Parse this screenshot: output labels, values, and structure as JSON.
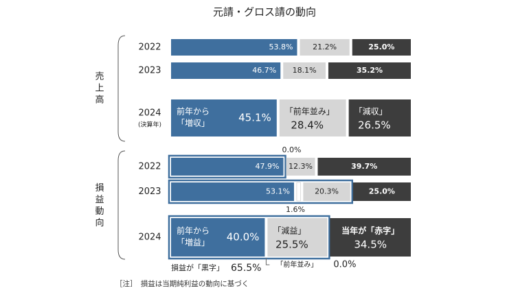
{
  "chart_data": {
    "type": "bar",
    "stacked": "horizontal-100%",
    "title": "元請・グロス請の動向",
    "colors": {
      "increase": "#3f6f9e",
      "flat": "#d6d6d6",
      "decrease": "#3d3d3d",
      "highlight_border": "#3f6f9e"
    },
    "groups": [
      {
        "label": "売上高",
        "rows": [
          {
            "category": "2022",
            "values": [
              53.8,
              21.2,
              25.0
            ],
            "labels": [
              "53.8%",
              "21.2%",
              "25.0%"
            ]
          },
          {
            "category": "2023",
            "values": [
              46.7,
              18.1,
              35.2
            ],
            "labels": [
              "46.7%",
              "18.1%",
              "35.2%"
            ]
          },
          {
            "category": "2024",
            "sub": "(決算年)",
            "values": [
              45.1,
              28.4,
              26.5
            ],
            "captions": [
              "前年から\n「増収」",
              "「前年並み」",
              "「減収」"
            ],
            "labels": [
              "45.1%",
              "28.4%",
              "26.5%"
            ]
          }
        ]
      },
      {
        "label": "損益動向",
        "rows": [
          {
            "category": "2022",
            "values": [
              47.9,
              0.0,
              12.3,
              39.7
            ],
            "labels": [
              "47.9%",
              "0.0%",
              "12.3%",
              "39.7%"
            ],
            "highlight": [
              0,
              1
            ]
          },
          {
            "category": "2023",
            "values": [
              53.1,
              1.6,
              20.3,
              25.0
            ],
            "labels": [
              "53.1%",
              "1.6%",
              "20.3%",
              "25.0%"
            ],
            "highlight": [
              0,
              1,
              2
            ]
          },
          {
            "category": "2024",
            "values": [
              40.0,
              0.0,
              25.5,
              34.5
            ],
            "captions": [
              "前年から\n「増益」",
              "「前年並み」",
              "「減益」",
              "当年が「赤字」"
            ],
            "labels": [
              "40.0%",
              "0.0%",
              "25.5%",
              "34.5%"
            ],
            "highlight": [
              0,
              1,
              2
            ]
          }
        ]
      }
    ],
    "annotations": {
      "black_label": "損益が「黒字」",
      "black_value": "65.5%"
    }
  },
  "footnote": "［注］　損益は当期純利益の動向に基づく"
}
